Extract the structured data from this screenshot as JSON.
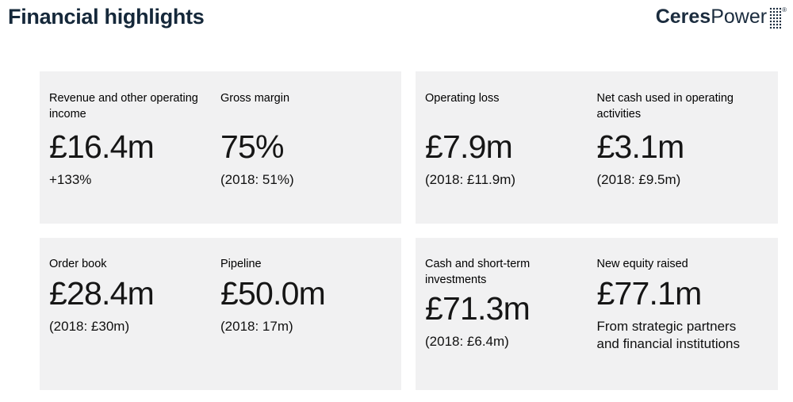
{
  "header": {
    "title": "Financial highlights"
  },
  "logo": {
    "part1": "Ceres",
    "part2": "Power",
    "registered_mark": "®",
    "dots_icon": "dot-matrix-logo-mark"
  },
  "colors": {
    "title_text": "#15283a",
    "logo_text": "#1b2c3e",
    "panel_background": "#f1f1f2",
    "metric_text": "#161616",
    "page_background": "#ffffff"
  },
  "panels": [
    {
      "position": "top-left",
      "metrics": [
        {
          "label": "Revenue and other operating income",
          "value": "£16.4m",
          "note": "+133%"
        },
        {
          "label": "Gross margin",
          "value": "75%",
          "note": "(2018: 51%)"
        }
      ]
    },
    {
      "position": "top-right",
      "metrics": [
        {
          "label": "Operating loss",
          "value": "£7.9m",
          "note": "(2018: £11.9m)"
        },
        {
          "label": "Net cash used in operating activities",
          "value": "£3.1m",
          "note": "(2018: £9.5m)"
        }
      ]
    },
    {
      "position": "bottom-left",
      "metrics": [
        {
          "label": "Order book",
          "value": "£28.4m",
          "note": "(2018: £30m)"
        },
        {
          "label": "Pipeline",
          "value": "£50.0m",
          "note": "(2018: 17m)"
        }
      ]
    },
    {
      "position": "bottom-right",
      "metrics": [
        {
          "label": "Cash and short-term investments",
          "value": "£71.3m",
          "note": "(2018: £6.4m)"
        },
        {
          "label": "New equity raised",
          "value": "£77.1m",
          "note": "From strategic partners and financial institutions"
        }
      ]
    }
  ]
}
